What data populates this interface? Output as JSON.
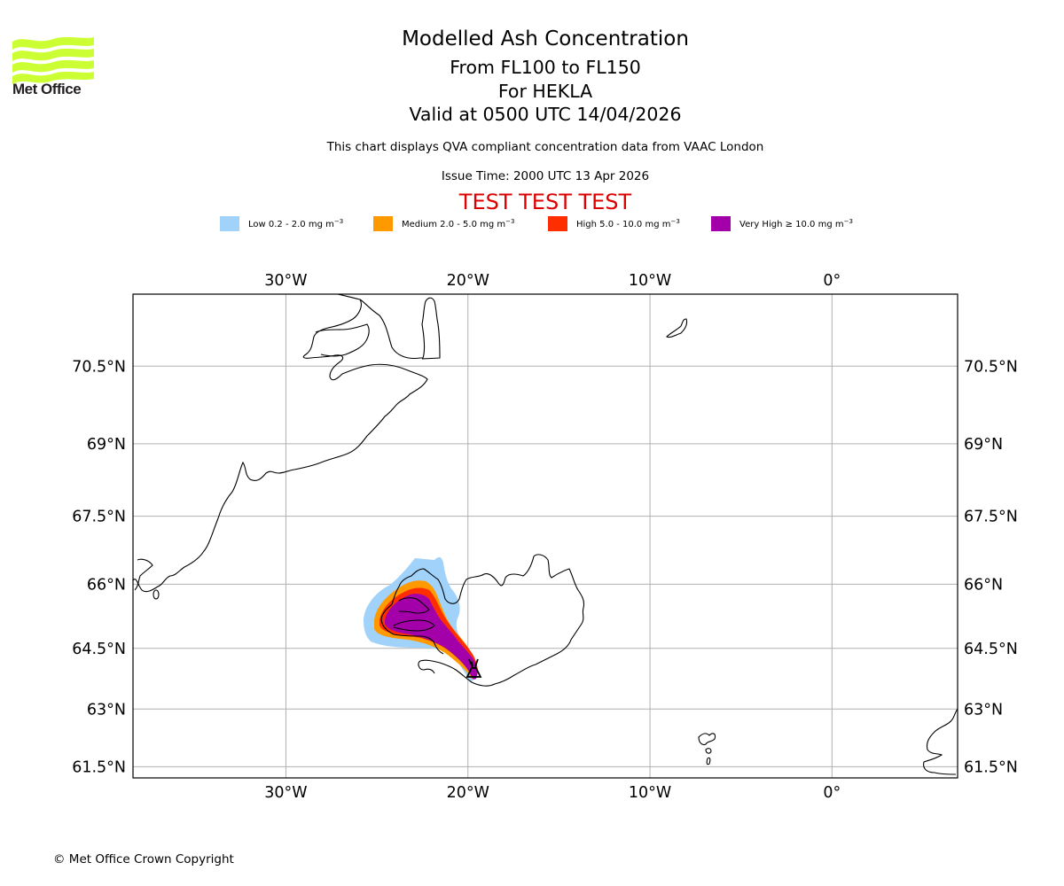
{
  "header": {
    "logo_text": "Met Office",
    "title": "Modelled Ash Concentration",
    "flight_levels": "From FL100 to FL150",
    "volcano": "For HEKLA",
    "valid_time": "Valid at 0500 UTC 14/04/2026",
    "subtitle": "This chart displays QVA compliant concentration data from VAAC London",
    "issue_time": "Issue Time: 2000 UTC 13 Apr 2026",
    "test_banner": "TEST TEST TEST"
  },
  "legend": [
    {
      "label": "Low 0.2 - 2.0 mg m",
      "unit_exp": "−3",
      "color": "#a0d2fa",
      "name": "low"
    },
    {
      "label": "Medium 2.0 - 5.0 mg m",
      "unit_exp": "−3",
      "color": "#ff9900",
      "name": "medium"
    },
    {
      "label": "High 5.0 - 10.0 mg m",
      "unit_exp": "−3",
      "color": "#ff2e00",
      "name": "high"
    },
    {
      "label": "Very High  ≥  10.0 mg m",
      "unit_exp": "−3",
      "color": "#a400aa",
      "name": "very-high"
    }
  ],
  "map": {
    "lon_range": [
      -38.4,
      6.9
    ],
    "lat_range": [
      61.2,
      71.8
    ],
    "lon_ticks": [
      {
        "value": -30,
        "label": "30°W"
      },
      {
        "value": -20,
        "label": "20°W"
      },
      {
        "value": -10,
        "label": "10°W"
      },
      {
        "value": 0,
        "label": "0°"
      }
    ],
    "lat_ticks": [
      {
        "value": 70.5,
        "label": "70.5°N"
      },
      {
        "value": 69,
        "label": "69°N"
      },
      {
        "value": 67.5,
        "label": "67.5°N"
      },
      {
        "value": 66,
        "label": "66°N"
      },
      {
        "value": 64.5,
        "label": "64.5°N"
      },
      {
        "value": 63,
        "label": "63°N"
      },
      {
        "value": 61.5,
        "label": "61.5°N"
      }
    ],
    "volcano": {
      "name": "HEKLA",
      "lon": -19.7,
      "lat": 63.98
    },
    "gridline_color": "#b0b0b0"
  },
  "footer": {
    "copyright": "© Met Office Crown Copyright"
  }
}
